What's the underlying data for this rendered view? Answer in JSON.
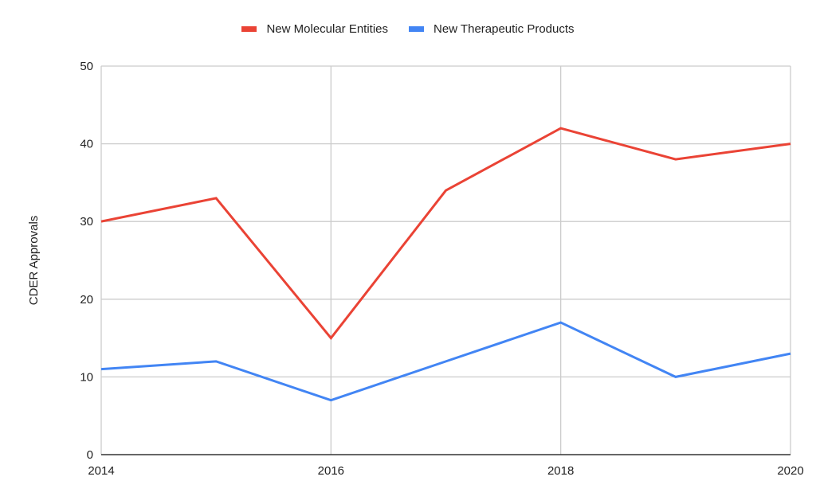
{
  "chart_data": {
    "type": "line",
    "title": "",
    "xlabel": "",
    "ylabel": "CDER Approvals",
    "x": [
      2014,
      2015,
      2016,
      2017,
      2018,
      2019,
      2020
    ],
    "x_tick_labels": [
      "2014",
      "2016",
      "2018",
      "2020"
    ],
    "y_tick_labels": [
      "0",
      "10",
      "20",
      "30",
      "40",
      "50"
    ],
    "ylim": [
      0,
      50
    ],
    "xlim": [
      2014,
      2020
    ],
    "grid": true,
    "legend_position": "top",
    "series": [
      {
        "name": "New Molecular Entities",
        "color": "#ea4335",
        "values": [
          30,
          33,
          15,
          34,
          42,
          38,
          40
        ]
      },
      {
        "name": "New Therapeutic Products",
        "color": "#4285f4",
        "values": [
          11,
          12,
          7,
          12,
          17,
          10,
          13
        ]
      }
    ]
  },
  "legend": {
    "items": [
      {
        "label": "New Molecular Entities",
        "color": "#ea4335"
      },
      {
        "label": "New Therapeutic Products",
        "color": "#4285f4"
      }
    ]
  }
}
